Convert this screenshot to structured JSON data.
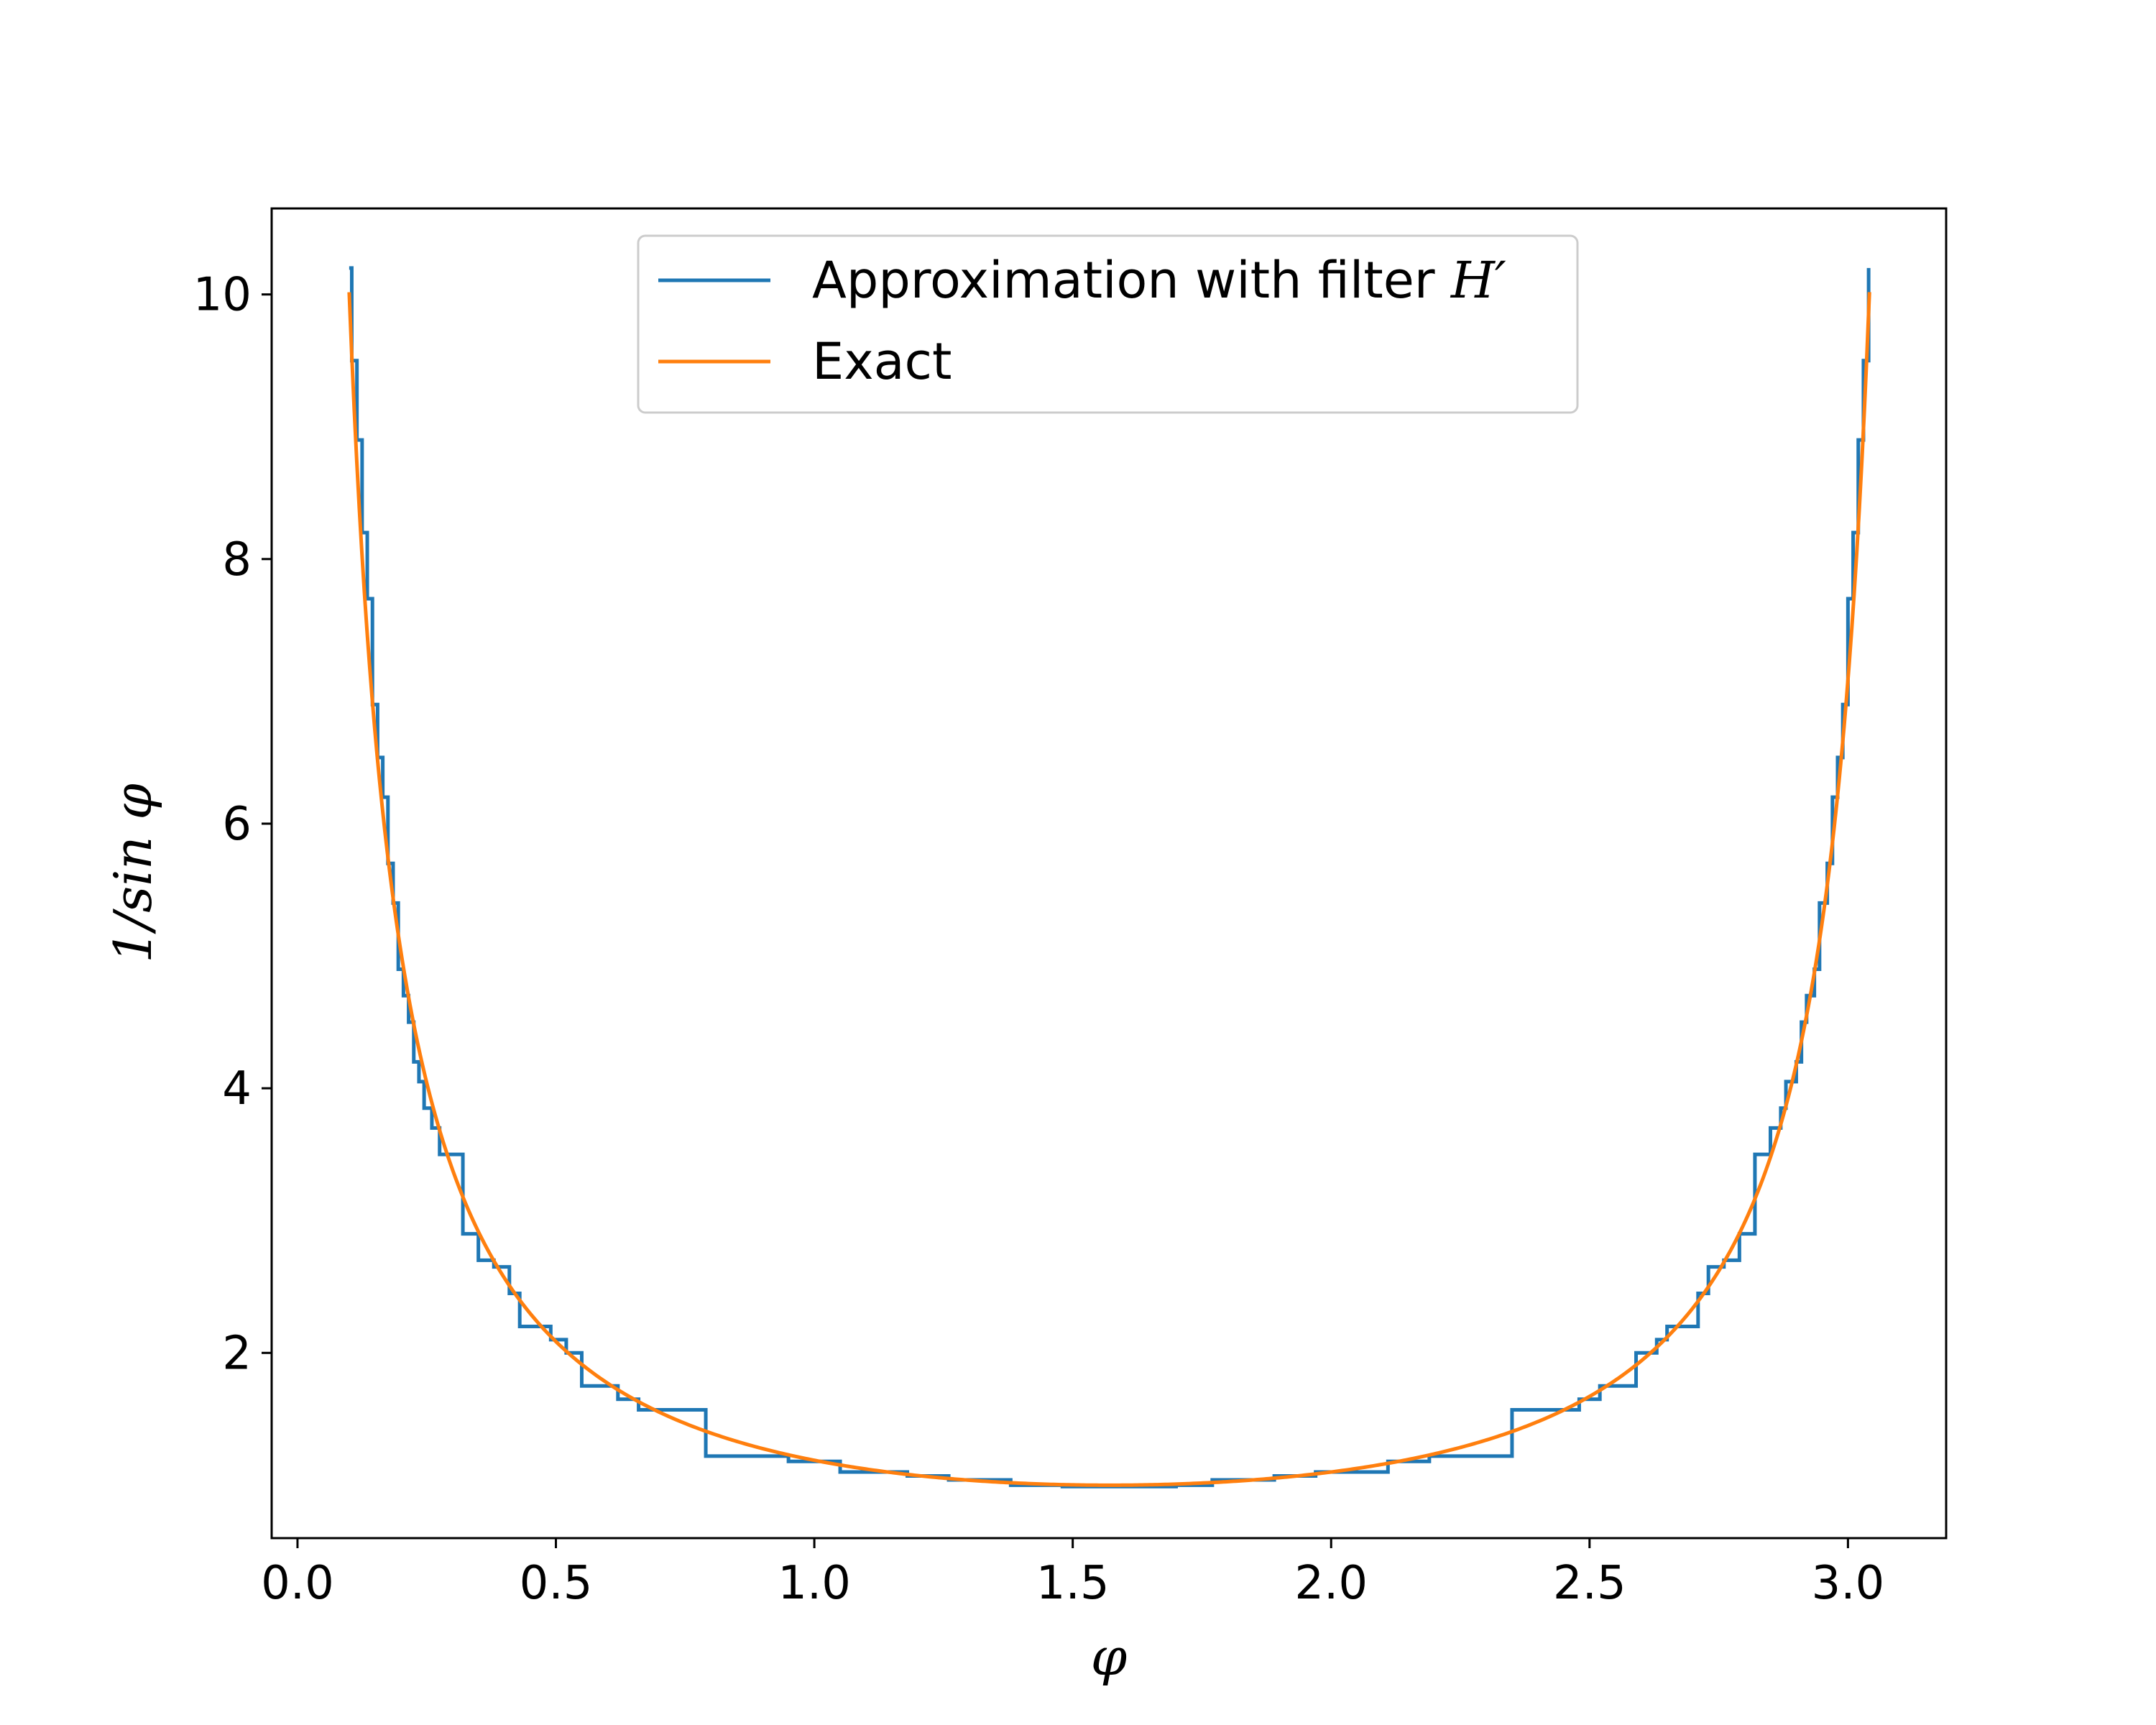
{
  "chart_data": {
    "type": "line",
    "xlabel": "φ",
    "ylabel": "1/sin φ",
    "xlim": [
      -0.05,
      3.19
    ],
    "ylim": [
      0.6,
      10.65
    ],
    "xticks": [
      {
        "value": 0.0,
        "label": "0.0"
      },
      {
        "value": 0.5,
        "label": "0.5"
      },
      {
        "value": 1.0,
        "label": "1.0"
      },
      {
        "value": 1.5,
        "label": "1.5"
      },
      {
        "value": 2.0,
        "label": "2.0"
      },
      {
        "value": 2.5,
        "label": "2.5"
      },
      {
        "value": 3.0,
        "label": "3.0"
      }
    ],
    "yticks": [
      {
        "value": 2,
        "label": "2"
      },
      {
        "value": 4,
        "label": "4"
      },
      {
        "value": 6,
        "label": "6"
      },
      {
        "value": 8,
        "label": "8"
      },
      {
        "value": 10,
        "label": "10"
      }
    ],
    "grid": false,
    "legend_position": "top-center",
    "series": [
      {
        "name": "Approximation with filter H′",
        "legend_prefix": "Approximation with filter ",
        "legend_symbol": "H′",
        "color": "#1f77b4",
        "step": "post",
        "x": [
          0.1,
          0.105,
          0.115,
          0.125,
          0.135,
          0.145,
          0.155,
          0.165,
          0.175,
          0.185,
          0.195,
          0.205,
          0.215,
          0.225,
          0.235,
          0.245,
          0.26,
          0.275,
          0.29,
          0.32,
          0.35,
          0.38,
          0.41,
          0.43,
          0.49,
          0.52,
          0.55,
          0.62,
          0.66,
          0.79,
          0.95,
          1.05,
          1.18,
          1.26,
          1.38,
          1.48,
          1.7,
          1.77,
          1.89,
          1.97,
          2.11,
          2.19,
          2.35,
          2.48,
          2.52,
          2.59,
          2.63,
          2.65,
          2.71,
          2.73,
          2.76,
          2.79,
          2.82,
          2.85,
          2.87,
          2.88,
          2.9,
          2.91,
          2.92,
          2.935,
          2.945,
          2.96,
          2.97,
          2.98,
          2.99,
          3.0,
          3.01,
          3.02,
          3.03,
          3.04
        ],
        "y": [
          10.2,
          9.5,
          8.9,
          8.2,
          7.7,
          6.9,
          6.5,
          6.2,
          5.7,
          5.4,
          4.9,
          4.7,
          4.5,
          4.2,
          4.05,
          3.85,
          3.7,
          3.5,
          3.5,
          2.9,
          2.7,
          2.65,
          2.45,
          2.2,
          2.1,
          2.0,
          1.75,
          1.65,
          1.57,
          1.22,
          1.18,
          1.1,
          1.07,
          1.04,
          1.0,
          0.99,
          1.0,
          1.04,
          1.07,
          1.1,
          1.18,
          1.22,
          1.57,
          1.65,
          1.75,
          2.0,
          2.1,
          2.2,
          2.45,
          2.65,
          2.7,
          2.9,
          3.5,
          3.7,
          3.85,
          4.05,
          4.2,
          4.5,
          4.7,
          4.9,
          5.4,
          5.7,
          6.2,
          6.5,
          6.9,
          7.7,
          8.2,
          8.9,
          9.5,
          10.2
        ]
      },
      {
        "name": "Exact",
        "color": "#ff7f0e",
        "function": "1/sin(x)",
        "x_range": [
          0.1,
          3.0416
        ]
      }
    ]
  }
}
